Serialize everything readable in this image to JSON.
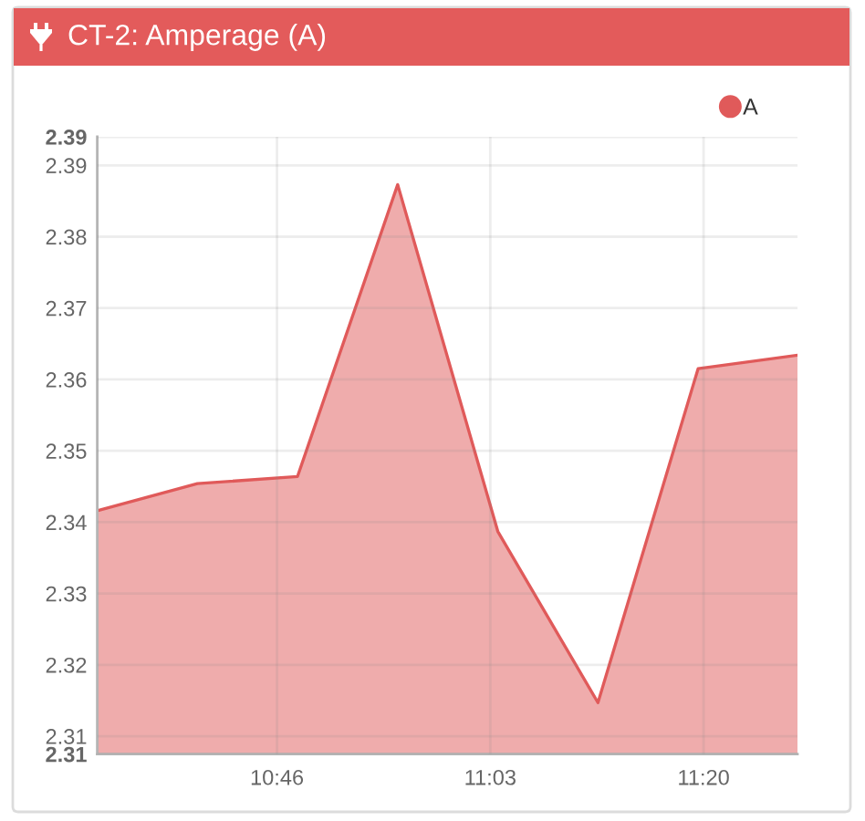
{
  "chart_data": {
    "type": "area",
    "title": "CT-2: Amperage (A)",
    "x": [
      10.528,
      10.661,
      10.794,
      10.927,
      11.06,
      11.193,
      11.326,
      11.458
    ],
    "series": [
      {
        "name": "A",
        "color": "#e05a5a",
        "values": [
          2.3416,
          2.3454,
          2.3464,
          2.3873,
          2.3387,
          2.3147,
          2.3615,
          2.3634
        ]
      }
    ],
    "xlim": [
      10.528,
      11.458
    ],
    "xticks": [
      {
        "value": 10.7667,
        "label": "10:46"
      },
      {
        "value": 11.05,
        "label": "11:03"
      },
      {
        "value": 11.3333,
        "label": "11:20"
      }
    ],
    "ylim": [
      2.3075,
      2.394
    ],
    "yticks": [
      {
        "value": 2.3075,
        "label": "2.31"
      },
      2.31,
      2.32,
      2.33,
      2.34,
      2.35,
      2.36,
      2.37,
      2.38,
      2.39,
      {
        "value": 2.394,
        "label": "2.39"
      }
    ],
    "grid": true,
    "legend": "top right",
    "line_style": "solid"
  }
}
